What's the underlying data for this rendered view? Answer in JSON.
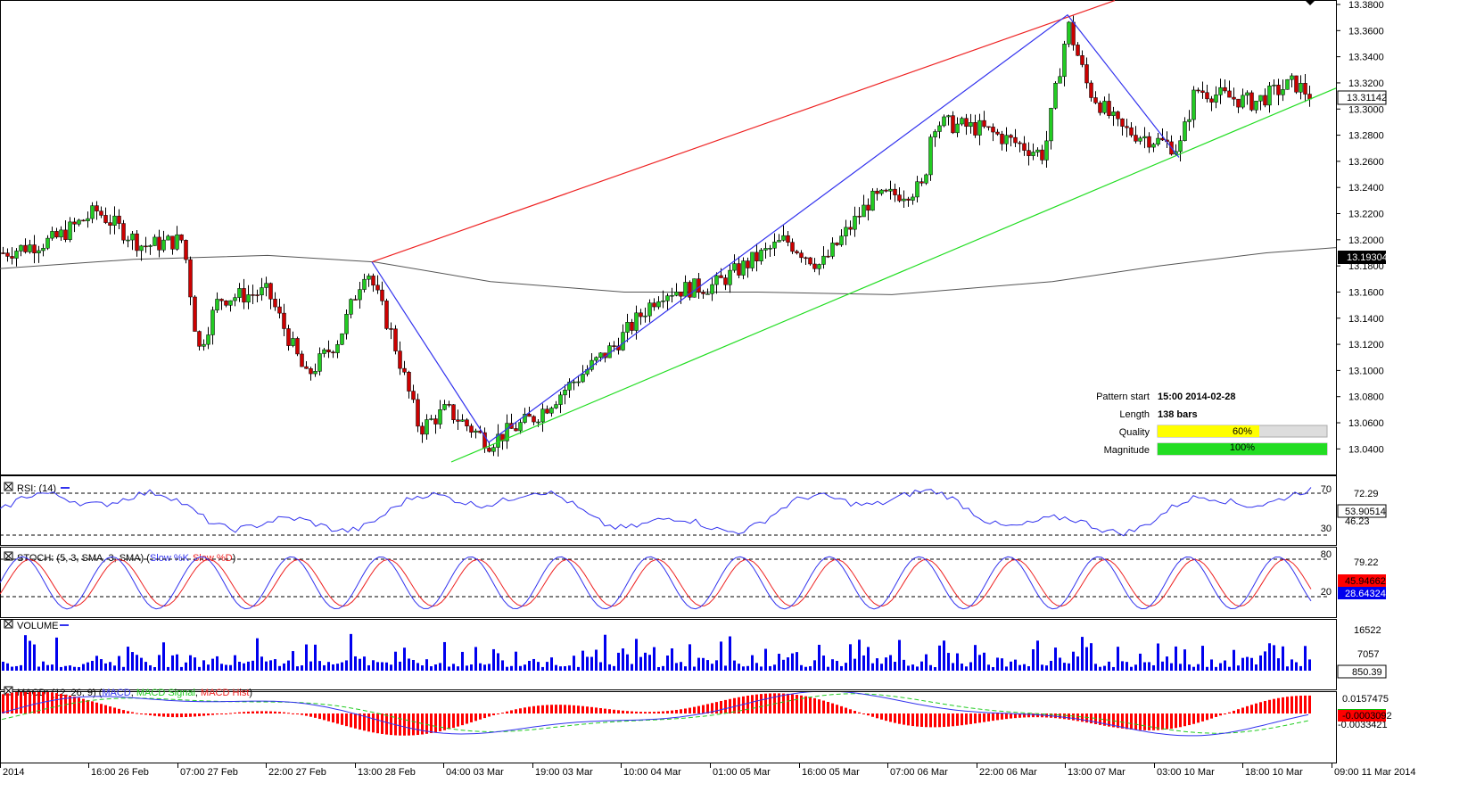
{
  "chart_data": [
    {
      "type": "candlestick",
      "panel": "price",
      "ylim": [
        13.03,
        13.38
      ],
      "y_ticks": [
        "13.3800",
        "13.3600",
        "13.3400",
        "13.3200",
        "13.3000",
        "13.2800",
        "13.2600",
        "13.2400",
        "13.2200",
        "13.2000",
        "13.1800",
        "13.1600",
        "13.1400",
        "13.1200",
        "13.1000",
        "13.0800",
        "13.0600",
        "13.0400"
      ],
      "x_ticks": [
        "2014",
        "16:00 26 Feb",
        "07:00 27 Feb",
        "22:00 27 Feb",
        "13:00 28 Feb",
        "04:00 03 Mar",
        "19:00 03 Mar",
        "10:00 04 Mar",
        "01:00 05 Mar",
        "16:00 05 Mar",
        "07:00 06 Mar",
        "22:00 06 Mar",
        "13:00 07 Mar",
        "03:00 10 Mar",
        "18:00 10 Mar",
        "09:00 11 Mar 2014"
      ],
      "last_price": "13.31142",
      "moving_average_value": "13.19304",
      "colors": {
        "up": "#22cc22",
        "down": "#cc0000",
        "ma": "#555555",
        "zigzag": "#3333ee",
        "upper_channel": "#ee2222",
        "lower_channel": "#22dd22"
      },
      "pattern": {
        "start_label": "Pattern start",
        "start_value": "15:00 2014-02-28",
        "length_label": "Length",
        "length_value": "138 bars",
        "quality_label": "Quality",
        "quality_value": "60%",
        "quality_fraction": 0.6,
        "magnitude_label": "Magnitude",
        "magnitude_value": "100%",
        "magnitude_fraction": 1.0
      },
      "key_points": [
        {
          "x": "13:00 28 Feb",
          "y": 13.183
        },
        {
          "x": "04:00 03 Mar",
          "y": 13.045
        },
        {
          "x": "13:00 07 Mar",
          "y": 13.372
        },
        {
          "x": "03:00 10 Mar",
          "y": 13.263
        }
      ]
    },
    {
      "type": "line",
      "panel": "rsi",
      "title": "RSI: (14)",
      "ylim": [
        20,
        80
      ],
      "levels": [
        "70",
        "30"
      ],
      "scale_label": "72.29",
      "current_value": "53.90514",
      "hidden_label": "46.23"
    },
    {
      "type": "line",
      "panel": "stochastic",
      "title_prefix": "STOCH: (5, 3, SMA, 3, SMA) (",
      "slow_k": "Slow %K",
      "slow_d": "Slow %D",
      "title_suffix": ")",
      "ylim": [
        0,
        100
      ],
      "levels": [
        "80",
        "20"
      ],
      "scale_label": "79.22",
      "k_value": "45.94662",
      "d_value": "28.64324"
    },
    {
      "type": "bar",
      "panel": "volume",
      "title": "VOLUME",
      "scale_labels": [
        "16522",
        "7057"
      ],
      "current_value": "850.39"
    },
    {
      "type": "line",
      "panel": "macd",
      "title_prefix": "MACD: (12, 26, 9) (",
      "macd": "MACD",
      "signal": "MACD Signal",
      "hist": "MACD Hist",
      "title_suffix": ")",
      "scale_label": "0.0157475",
      "bottom_label": "-0.0033421",
      "current_value": "-0.0003092"
    }
  ]
}
